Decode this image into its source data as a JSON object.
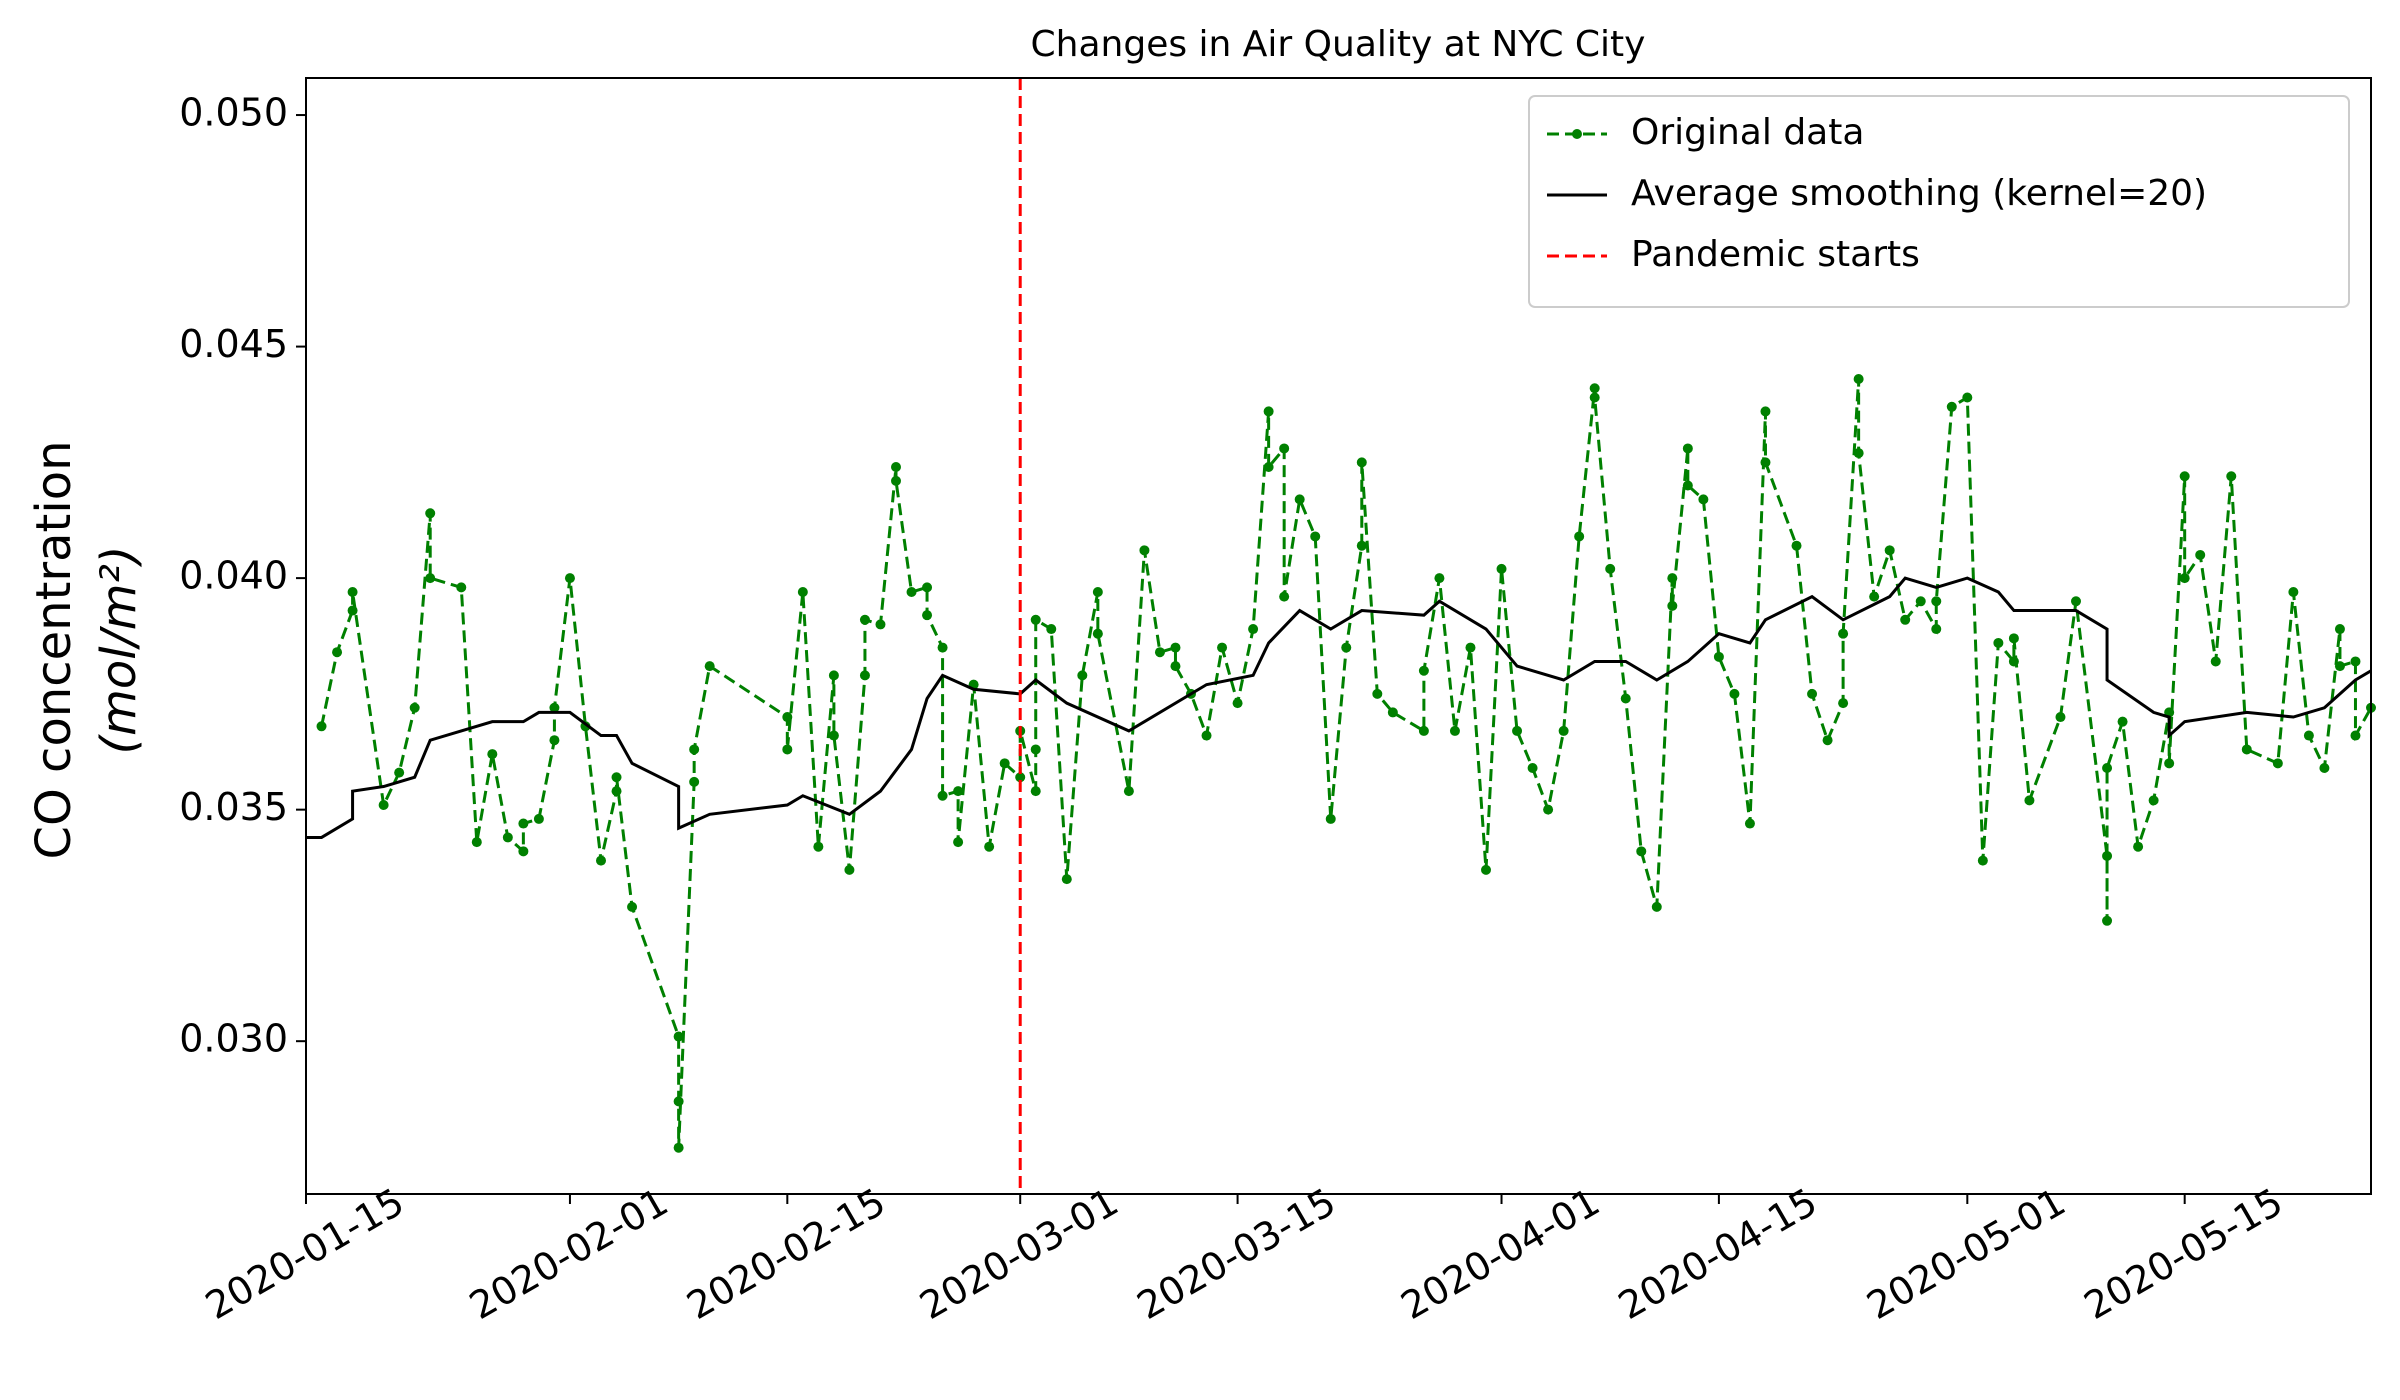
{
  "chart_data": {
    "type": "line",
    "title": "Changes in Air Quality at NYC City",
    "ylabel": [
      "CO concentration",
      "(mol/m²)"
    ],
    "xlim": [
      "2020-01-15",
      "2020-05-27"
    ],
    "xticks": [
      "2020-01-15",
      "2020-02-01",
      "2020-02-15",
      "2020-03-01",
      "2020-03-15",
      "2020-04-01",
      "2020-04-15",
      "2020-05-01",
      "2020-05-15"
    ],
    "ylim": [
      0.0267,
      0.0508
    ],
    "yticks": [
      {
        "value": 0.03,
        "label": "0.030"
      },
      {
        "value": 0.035,
        "label": "0.035"
      },
      {
        "value": 0.04,
        "label": "0.040"
      },
      {
        "value": 0.045,
        "label": "0.045"
      },
      {
        "value": 0.05,
        "label": "0.050"
      }
    ],
    "grid": false,
    "legend_loc": "upper right",
    "series": [
      {
        "name": "Original data",
        "color": "#008000",
        "linestyle": "dashed",
        "marker": true,
        "x": [
          "2020-01-16",
          "2020-01-17",
          "2020-01-18",
          "2020-01-18",
          "2020-01-20",
          "2020-01-21",
          "2020-01-22",
          "2020-01-23",
          "2020-01-23",
          "2020-01-25",
          "2020-01-26",
          "2020-01-27",
          "2020-01-28",
          "2020-01-29",
          "2020-01-29",
          "2020-01-30",
          "2020-01-31",
          "2020-01-31",
          "2020-02-01",
          "2020-02-02",
          "2020-02-03",
          "2020-02-04",
          "2020-02-04",
          "2020-02-05",
          "2020-02-08",
          "2020-02-08",
          "2020-02-08",
          "2020-02-09",
          "2020-02-09",
          "2020-02-10",
          "2020-02-15",
          "2020-02-15",
          "2020-02-16",
          "2020-02-17",
          "2020-02-18",
          "2020-02-18",
          "2020-02-19",
          "2020-02-20",
          "2020-02-20",
          "2020-02-21",
          "2020-02-22",
          "2020-02-22",
          "2020-02-23",
          "2020-02-24",
          "2020-02-24",
          "2020-02-25",
          "2020-02-25",
          "2020-02-26",
          "2020-02-26",
          "2020-02-27",
          "2020-02-28",
          "2020-02-29",
          "2020-03-01",
          "2020-03-01",
          "2020-03-02",
          "2020-03-02",
          "2020-03-02",
          "2020-03-03",
          "2020-03-04",
          "2020-03-05",
          "2020-03-06",
          "2020-03-06",
          "2020-03-08",
          "2020-03-09",
          "2020-03-10",
          "2020-03-11",
          "2020-03-11",
          "2020-03-12",
          "2020-03-13",
          "2020-03-14",
          "2020-03-15",
          "2020-03-16",
          "2020-03-17",
          "2020-03-17",
          "2020-03-18",
          "2020-03-18",
          "2020-03-19",
          "2020-03-20",
          "2020-03-21",
          "2020-03-22",
          "2020-03-23",
          "2020-03-23",
          "2020-03-24",
          "2020-03-25",
          "2020-03-27",
          "2020-03-27",
          "2020-03-28",
          "2020-03-29",
          "2020-03-30",
          "2020-03-31",
          "2020-04-01",
          "2020-04-02",
          "2020-04-03",
          "2020-04-04",
          "2020-04-05",
          "2020-04-06",
          "2020-04-07",
          "2020-04-07",
          "2020-04-08",
          "2020-04-09",
          "2020-04-10",
          "2020-04-11",
          "2020-04-12",
          "2020-04-12",
          "2020-04-13",
          "2020-04-13",
          "2020-04-14",
          "2020-04-15",
          "2020-04-16",
          "2020-04-17",
          "2020-04-18",
          "2020-04-18",
          "2020-04-20",
          "2020-04-21",
          "2020-04-22",
          "2020-04-23",
          "2020-04-23",
          "2020-04-24",
          "2020-04-24",
          "2020-04-25",
          "2020-04-26",
          "2020-04-27",
          "2020-04-28",
          "2020-04-29",
          "2020-04-29",
          "2020-04-30",
          "2020-05-01",
          "2020-05-02",
          "2020-05-03",
          "2020-05-04",
          "2020-05-04",
          "2020-05-05",
          "2020-05-07",
          "2020-05-08",
          "2020-05-10",
          "2020-05-10",
          "2020-05-10",
          "2020-05-11",
          "2020-05-12",
          "2020-05-13",
          "2020-05-14",
          "2020-05-14",
          "2020-05-15",
          "2020-05-15",
          "2020-05-16",
          "2020-05-17",
          "2020-05-18",
          "2020-05-19",
          "2020-05-21",
          "2020-05-22",
          "2020-05-23",
          "2020-05-24",
          "2020-05-25",
          "2020-05-25",
          "2020-05-26",
          "2020-05-26",
          "2020-05-27"
        ],
        "values": [
          0.0368,
          0.0384,
          0.0393,
          0.0397,
          0.0351,
          0.0358,
          0.0372,
          0.0414,
          0.04,
          0.0398,
          0.0343,
          0.0362,
          0.0344,
          0.0341,
          0.0347,
          0.0348,
          0.0365,
          0.0372,
          0.04,
          0.0368,
          0.0339,
          0.0354,
          0.0357,
          0.0329,
          0.0301,
          0.0287,
          0.0277,
          0.0356,
          0.0363,
          0.0381,
          0.037,
          0.0363,
          0.0397,
          0.0342,
          0.0379,
          0.0366,
          0.0337,
          0.0379,
          0.0391,
          0.039,
          0.0424,
          0.0421,
          0.0397,
          0.0398,
          0.0392,
          0.0385,
          0.0353,
          0.0354,
          0.0343,
          0.0377,
          0.0342,
          0.036,
          0.0357,
          0.0367,
          0.0354,
          0.0363,
          0.0391,
          0.0389,
          0.0335,
          0.0379,
          0.0397,
          0.0388,
          0.0354,
          0.0406,
          0.0384,
          0.0385,
          0.0381,
          0.0375,
          0.0366,
          0.0385,
          0.0373,
          0.0389,
          0.0436,
          0.0424,
          0.0428,
          0.0396,
          0.0417,
          0.0409,
          0.0348,
          0.0385,
          0.0407,
          0.0425,
          0.0375,
          0.0371,
          0.0367,
          0.038,
          0.04,
          0.0367,
          0.0385,
          0.0337,
          0.0402,
          0.0367,
          0.0359,
          0.035,
          0.0367,
          0.0409,
          0.0441,
          0.0439,
          0.0402,
          0.0374,
          0.0341,
          0.0329,
          0.04,
          0.0394,
          0.0428,
          0.042,
          0.0417,
          0.0383,
          0.0375,
          0.0347,
          0.0436,
          0.0425,
          0.0407,
          0.0375,
          0.0365,
          0.0373,
          0.0388,
          0.0443,
          0.0427,
          0.0396,
          0.0406,
          0.0391,
          0.0395,
          0.0389,
          0.0395,
          0.0437,
          0.0439,
          0.0339,
          0.0386,
          0.0382,
          0.0387,
          0.0352,
          0.037,
          0.0395,
          0.034,
          0.0326,
          0.0359,
          0.0369,
          0.0342,
          0.0352,
          0.0371,
          0.036,
          0.0422,
          0.04,
          0.0405,
          0.0382,
          0.0422,
          0.0363,
          0.036,
          0.0397,
          0.0366,
          0.0359,
          0.0389,
          0.0381,
          0.0382,
          0.0366,
          0.0372
        ]
      },
      {
        "name": "Average smoothing (kernel=20)",
        "color": "#000000",
        "linestyle": "solid",
        "marker": false,
        "x": [
          "2020-01-15",
          "2020-01-16",
          "2020-01-18",
          "2020-01-18",
          "2020-01-20",
          "2020-01-22",
          "2020-01-23",
          "2020-01-25",
          "2020-01-27",
          "2020-01-29",
          "2020-01-30",
          "2020-02-01",
          "2020-02-03",
          "2020-02-04",
          "2020-02-05",
          "2020-02-08",
          "2020-02-08",
          "2020-02-10",
          "2020-02-15",
          "2020-02-16",
          "2020-02-19",
          "2020-02-21",
          "2020-02-23",
          "2020-02-24",
          "2020-02-25",
          "2020-02-27",
          "2020-03-01",
          "2020-03-02",
          "2020-03-04",
          "2020-03-08",
          "2020-03-13",
          "2020-03-16",
          "2020-03-17",
          "2020-03-19",
          "2020-03-21",
          "2020-03-23",
          "2020-03-27",
          "2020-03-28",
          "2020-03-31",
          "2020-04-02",
          "2020-04-05",
          "2020-04-07",
          "2020-04-09",
          "2020-04-11",
          "2020-04-13",
          "2020-04-15",
          "2020-04-17",
          "2020-04-18",
          "2020-04-21",
          "2020-04-23",
          "2020-04-26",
          "2020-04-27",
          "2020-04-29",
          "2020-05-01",
          "2020-05-03",
          "2020-05-04",
          "2020-05-08",
          "2020-05-10",
          "2020-05-10",
          "2020-05-13",
          "2020-05-14",
          "2020-05-14",
          "2020-05-15",
          "2020-05-19",
          "2020-05-22",
          "2020-05-24",
          "2020-05-26",
          "2020-05-27"
        ],
        "values": [
          0.0344,
          0.0344,
          0.0348,
          0.0354,
          0.0355,
          0.0357,
          0.0365,
          0.0367,
          0.0369,
          0.0369,
          0.0371,
          0.0371,
          0.0366,
          0.0366,
          0.036,
          0.0355,
          0.0346,
          0.0349,
          0.0351,
          0.0353,
          0.0349,
          0.0354,
          0.0363,
          0.0374,
          0.0379,
          0.0376,
          0.0375,
          0.0378,
          0.0373,
          0.0367,
          0.0377,
          0.0379,
          0.0386,
          0.0393,
          0.0389,
          0.0393,
          0.0392,
          0.0395,
          0.0389,
          0.0381,
          0.0378,
          0.0382,
          0.0382,
          0.0378,
          0.0382,
          0.0388,
          0.0386,
          0.0391,
          0.0396,
          0.0391,
          0.0396,
          0.04,
          0.0398,
          0.04,
          0.0397,
          0.0393,
          0.0393,
          0.0389,
          0.0378,
          0.0371,
          0.037,
          0.0366,
          0.0369,
          0.0371,
          0.037,
          0.0372,
          0.0378,
          0.038
        ]
      }
    ],
    "vlines": [
      {
        "name": "Pandemic starts",
        "x": "2020-03-01",
        "color": "#ff0000",
        "linestyle": "dashed"
      }
    ]
  }
}
